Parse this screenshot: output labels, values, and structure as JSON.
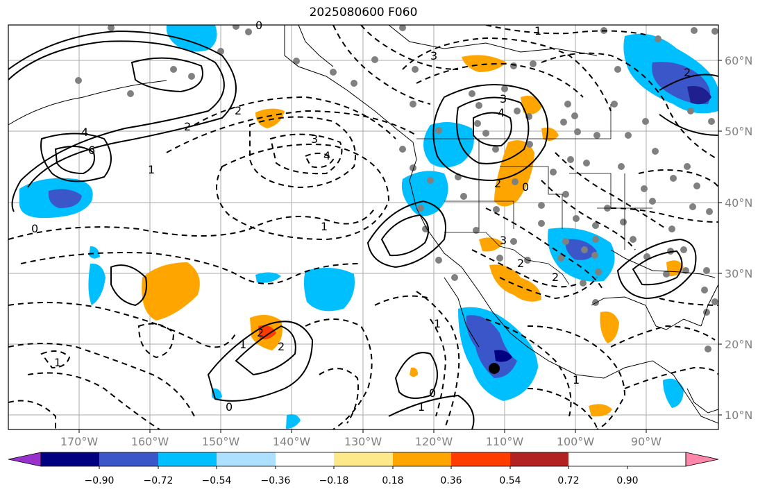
{
  "title": "2025080600 F060",
  "map": {
    "lon_labels": [
      "170°W",
      "160°W",
      "150°W",
      "140°W",
      "130°W",
      "120°W",
      "110°W",
      "100°W",
      "90°W"
    ],
    "lat_labels": [
      "60°N",
      "50°N",
      "40°N",
      "30°N",
      "20°N",
      "10°N"
    ],
    "contour_labels": [
      "0",
      "6",
      "4",
      "2",
      "1",
      "0",
      "3",
      "4",
      "2",
      "1",
      "3",
      "4",
      "2",
      "0",
      "2",
      "3",
      "1",
      "0",
      "2",
      "1",
      "2",
      "1",
      "0",
      "1",
      "2",
      "1",
      "3",
      "2",
      "1"
    ],
    "colors": {
      "negative_strong": "#1f1f8f",
      "negative_mid": "#3a56c8",
      "negative_light": "#00b4f0",
      "positive_light": "#fee98a",
      "positive_mid": "#ffa500",
      "positive_strong": "#ff3c00",
      "positive_dark": "#b22222",
      "station_dot": "#808080"
    }
  },
  "colorbar": {
    "ticks": [
      "−0.90",
      "−0.72",
      "−0.54",
      "−0.36",
      "−0.18",
      "0.18",
      "0.36",
      "0.54",
      "0.72",
      "0.90"
    ],
    "segment_colors": [
      "#9932cc",
      "#000080",
      "#3a56c8",
      "#00bfff",
      "#addfff",
      "#ffffff",
      "#fee98a",
      "#ffa500",
      "#ff3c00",
      "#b22222",
      "#ff88aa"
    ]
  }
}
